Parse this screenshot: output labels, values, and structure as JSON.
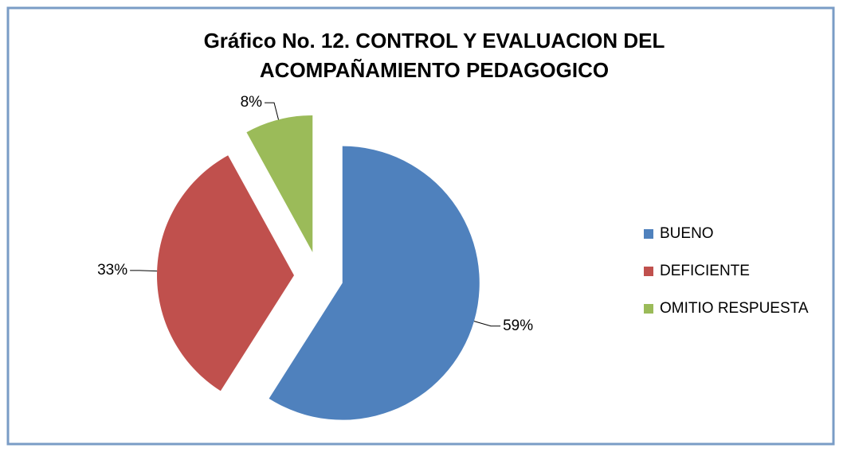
{
  "chart_data": {
    "type": "pie",
    "title": [
      "Gráfico No. 12. CONTROL Y EVALUACION DEL",
      "ACOMPAÑAMIENTO PEDAGOGICO"
    ],
    "categories": [
      "BUENO",
      "DEFICIENTE",
      "OMITIO RESPUESTA"
    ],
    "values": [
      59,
      33,
      8
    ],
    "value_labels": [
      "59%",
      "33%",
      "8%"
    ],
    "colors": [
      "#4f81bd",
      "#c0504d",
      "#9bbb59"
    ],
    "legend": "right"
  }
}
